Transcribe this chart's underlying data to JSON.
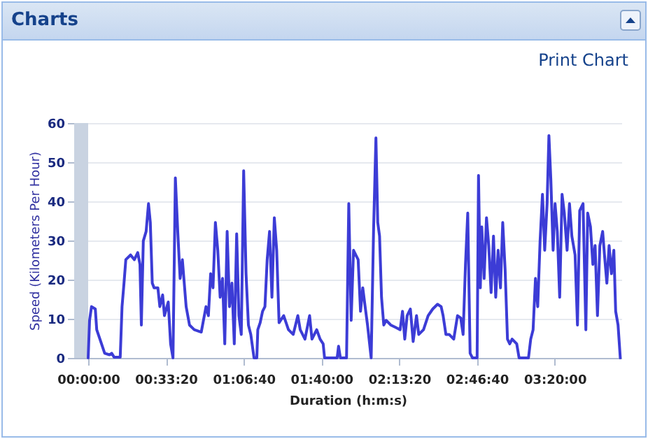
{
  "chart_data": {
    "type": "line",
    "title": "Charts",
    "xlabel": "Duration (h:m:s)",
    "ylabel": "Speed (Kilometers Per Hour)",
    "annotations": [
      "Print Chart"
    ],
    "xlim": [
      -0.1,
      3.81
    ],
    "xticks": [
      {
        "value": 0,
        "label": "00:00:00"
      },
      {
        "value": 0.5556,
        "label": "00:33:20"
      },
      {
        "value": 1.1111,
        "label": "01:06:40"
      },
      {
        "value": 1.6667,
        "label": "01:40:00"
      },
      {
        "value": 2.2222,
        "label": "02:13:20"
      },
      {
        "value": 2.7778,
        "label": "02:46:40"
      },
      {
        "value": 3.3333,
        "label": "03:20:00"
      }
    ],
    "ylim": [
      0,
      60
    ],
    "yticks": [
      0,
      10,
      20,
      30,
      40,
      50,
      60
    ],
    "grid": "y",
    "bands": [
      {
        "axis": "x",
        "from": -0.1,
        "to": 0,
        "color": "#c9d3e1"
      }
    ],
    "series": [
      {
        "color": "#3c3cd6",
        "x": [
          0,
          0.01,
          0.024,
          0.051,
          0.061,
          0.084,
          0.118,
          0.152,
          0.168,
          0.185,
          0.229,
          0.242,
          0.256,
          0.269,
          0.303,
          0.33,
          0.354,
          0.37,
          0.38,
          0.394,
          0.414,
          0.431,
          0.444,
          0.458,
          0.471,
          0.498,
          0.512,
          0.532,
          0.545,
          0.572,
          0.589,
          0.606,
          0.623,
          0.64,
          0.657,
          0.673,
          0.7,
          0.724,
          0.758,
          0.808,
          0.842,
          0.859,
          0.875,
          0.892,
          0.909,
          0.926,
          0.943,
          0.96,
          0.976,
          0.993,
          1.01,
          1.027,
          1.044,
          1.061,
          1.077,
          1.094,
          1.111,
          1.128,
          1.145,
          1.162,
          1.185,
          1.205,
          1.212,
          1.229,
          1.246,
          1.263,
          1.279,
          1.296,
          1.313,
          1.33,
          1.347,
          1.364,
          1.397,
          1.431,
          1.465,
          1.498,
          1.515,
          1.549,
          1.582,
          1.599,
          1.633,
          1.657,
          1.679,
          1.689,
          1.779,
          1.789,
          1.802,
          1.846,
          1.862,
          1.879,
          1.896,
          1.912,
          1.929,
          1.946,
          1.962,
          1.979,
          1.996,
          2.022,
          2.039,
          2.056,
          2.069,
          2.082,
          2.096,
          2.112,
          2.129,
          2.162,
          2.196,
          2.229,
          2.246,
          2.262,
          2.279,
          2.302,
          2.322,
          2.346,
          2.362,
          2.396,
          2.429,
          2.462,
          2.496,
          2.522,
          2.536,
          2.556,
          2.579,
          2.612,
          2.639,
          2.662,
          2.679,
          2.696,
          2.712,
          2.729,
          2.746,
          2.779,
          2.789,
          2.802,
          2.812,
          2.829,
          2.846,
          2.862,
          2.879,
          2.896,
          2.912,
          2.929,
          2.946,
          2.962,
          2.979,
          2.996,
          3.012,
          3.029,
          3.062,
          3.079,
          3.146,
          3.162,
          3.179,
          3.196,
          3.212,
          3.229,
          3.246,
          3.262,
          3.279,
          3.292,
          3.306,
          3.322,
          3.336,
          3.352,
          3.369,
          3.386,
          3.402,
          3.422,
          3.439,
          3.456,
          3.479,
          3.496,
          3.512,
          3.536,
          3.556,
          3.569,
          3.589,
          3.606,
          3.622,
          3.639,
          3.656,
          3.676,
          3.689,
          3.706,
          3.722,
          3.739,
          3.756,
          3.769,
          3.786,
          3.802
        ],
        "values": [
          0,
          9.6,
          13.1,
          12.5,
          7.2,
          4.8,
          1.2,
          0.8,
          1.2,
          0.2,
          0.2,
          13.1,
          19.1,
          25.1,
          26.3,
          25.1,
          26.9,
          23.9,
          8.4,
          29.9,
          32.3,
          39.4,
          34.6,
          19.1,
          17.9,
          17.9,
          13.1,
          16.1,
          10.8,
          14.3,
          3.6,
          0,
          46.0,
          32.3,
          20.3,
          25.1,
          13.1,
          8.4,
          7.2,
          6.6,
          13.1,
          10.8,
          21.5,
          17.9,
          34.6,
          27.5,
          15.5,
          20.3,
          3.6,
          32.3,
          13.1,
          19.1,
          3.6,
          31.7,
          10.8,
          6.0,
          47.8,
          21.5,
          8.4,
          6.0,
          0,
          0,
          7.2,
          9.0,
          11.9,
          13.1,
          25.1,
          32.3,
          15.5,
          35.8,
          27.5,
          9.0,
          10.8,
          7.2,
          6.0,
          10.8,
          7.2,
          4.8,
          10.8,
          4.8,
          7.2,
          4.8,
          3.6,
          0,
          0,
          3.0,
          0,
          0,
          39.4,
          9.6,
          27.5,
          26.3,
          25.1,
          11.9,
          17.9,
          13.1,
          8.4,
          0,
          32.3,
          56.2,
          34.6,
          31.1,
          15.5,
          8.4,
          9.6,
          8.4,
          7.8,
          7.2,
          11.9,
          4.8,
          10.8,
          12.5,
          4.2,
          10.8,
          6.0,
          7.2,
          10.8,
          12.5,
          13.7,
          13.1,
          10.8,
          6.0,
          6.0,
          4.8,
          10.8,
          10.2,
          6.0,
          23.9,
          37.0,
          1.2,
          0,
          0,
          46.6,
          17.9,
          33.5,
          20.3,
          35.8,
          28.7,
          16.7,
          31.1,
          15.5,
          27.5,
          17.9,
          34.6,
          22.7,
          4.8,
          3.6,
          4.8,
          3.6,
          0,
          0,
          4.8,
          7.2,
          20.3,
          13.1,
          29.9,
          41.8,
          27.5,
          39.4,
          56.8,
          45.4,
          27.5,
          39.4,
          32.3,
          15.5,
          41.8,
          37.0,
          27.5,
          39.4,
          31.1,
          26.3,
          8.4,
          37.6,
          39.4,
          7.2,
          37.0,
          33.5,
          23.9,
          28.7,
          10.8,
          28.7,
          32.3,
          26.3,
          19.1,
          28.7,
          21.5,
          27.5,
          11.9,
          8.4,
          0
        ]
      }
    ]
  }
}
